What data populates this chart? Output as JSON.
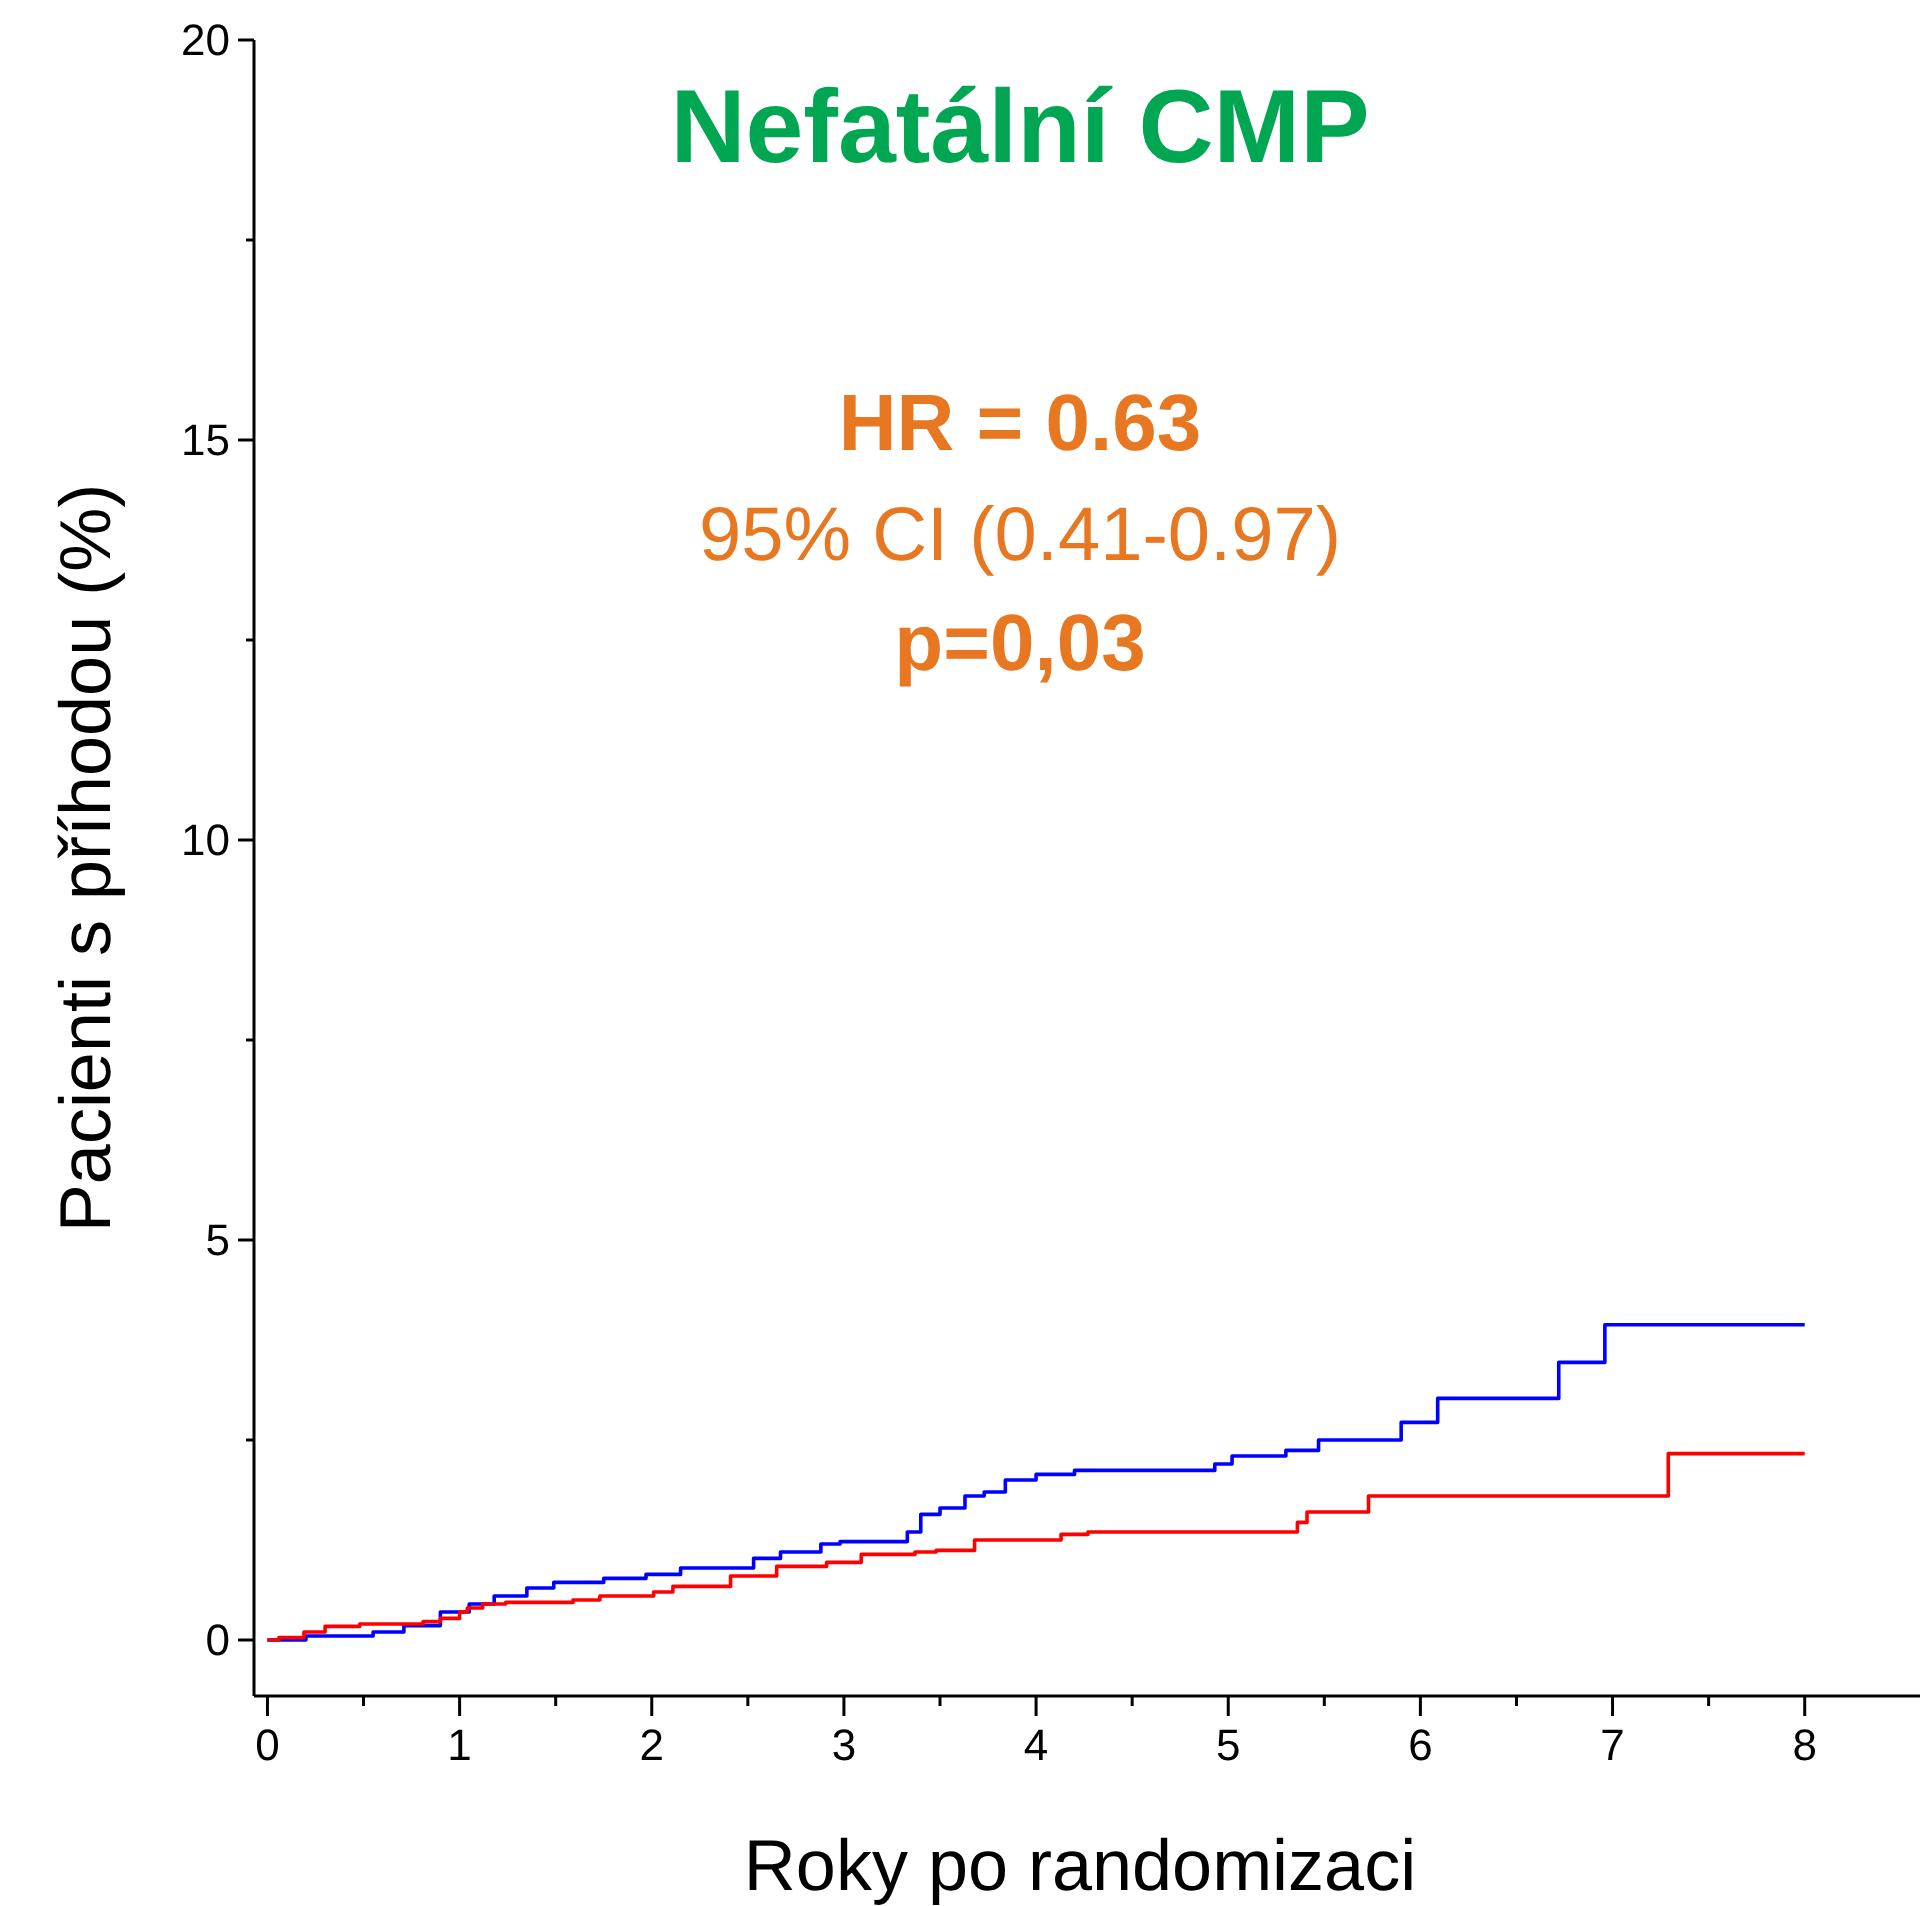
{
  "chart_data": {
    "type": "step",
    "title": "Nefatální CMP",
    "xlabel": "Roky po randomizaci",
    "ylabel": "Pacienti s příhodou (%)",
    "annotations": [
      "HR = 0.63",
      "95% CI (0.41-0.97)",
      "p=0,03"
    ],
    "xlim": [
      -0.07,
      8.6
    ],
    "ylim": [
      -0.7,
      20
    ],
    "xticks": [
      0,
      {
        "value": 0.5,
        "label": null
      },
      1,
      {
        "value": 1.5,
        "label": null
      },
      2,
      {
        "value": 2.5,
        "label": null
      },
      3,
      {
        "value": 3.5,
        "label": null
      },
      4,
      {
        "value": 4.5,
        "label": null
      },
      5,
      {
        "value": 5.5,
        "label": null
      },
      6,
      {
        "value": 6.5,
        "label": null
      },
      7,
      {
        "value": 7.5,
        "label": null
      },
      8
    ],
    "yticks": [
      0,
      {
        "value": 2.5,
        "label": null
      },
      5,
      {
        "value": 7.5,
        "label": null
      },
      10,
      {
        "value": 12.5,
        "label": null
      },
      15,
      {
        "value": 17.5,
        "label": null
      },
      20
    ],
    "marker": "none",
    "line_style": "solid",
    "series": [
      {
        "color": "#0000ff",
        "x": [
          0,
          0.2,
          0.55,
          0.71,
          0.9,
          1.05,
          1.18,
          1.35,
          1.49,
          1.75,
          1.97,
          2.15,
          2.53,
          2.67,
          2.88,
          2.98,
          3.33,
          3.4,
          3.5,
          3.63,
          3.73,
          3.84,
          4.0,
          4.2,
          4.93,
          5.02,
          5.3,
          5.47,
          5.9,
          6.09,
          6.72,
          6.96,
          8
        ],
        "values": [
          0,
          0.05,
          0.1,
          0.18,
          0.35,
          0.45,
          0.55,
          0.65,
          0.72,
          0.77,
          0.82,
          0.9,
          1.02,
          1.1,
          1.2,
          1.23,
          1.35,
          1.57,
          1.65,
          1.8,
          1.85,
          2.0,
          2.07,
          2.12,
          2.2,
          2.3,
          2.37,
          2.5,
          2.72,
          3.02,
          3.47,
          3.94,
          3.94
        ]
      },
      {
        "color": "#ff0000",
        "x": [
          0,
          0.06,
          0.19,
          0.3,
          0.48,
          0.81,
          0.9,
          1.0,
          1.04,
          1.12,
          1.24,
          1.59,
          1.73,
          2.01,
          2.11,
          2.41,
          2.65,
          2.91,
          3.09,
          3.37,
          3.48,
          3.68,
          4.13,
          4.27,
          5.36,
          5.41,
          5.73,
          7.29,
          8
        ],
        "values": [
          0,
          0.03,
          0.1,
          0.17,
          0.2,
          0.23,
          0.27,
          0.35,
          0.4,
          0.45,
          0.47,
          0.5,
          0.55,
          0.6,
          0.67,
          0.8,
          0.92,
          0.97,
          1.07,
          1.1,
          1.12,
          1.25,
          1.32,
          1.35,
          1.47,
          1.6,
          1.8,
          2.33,
          2.33
        ]
      }
    ]
  }
}
